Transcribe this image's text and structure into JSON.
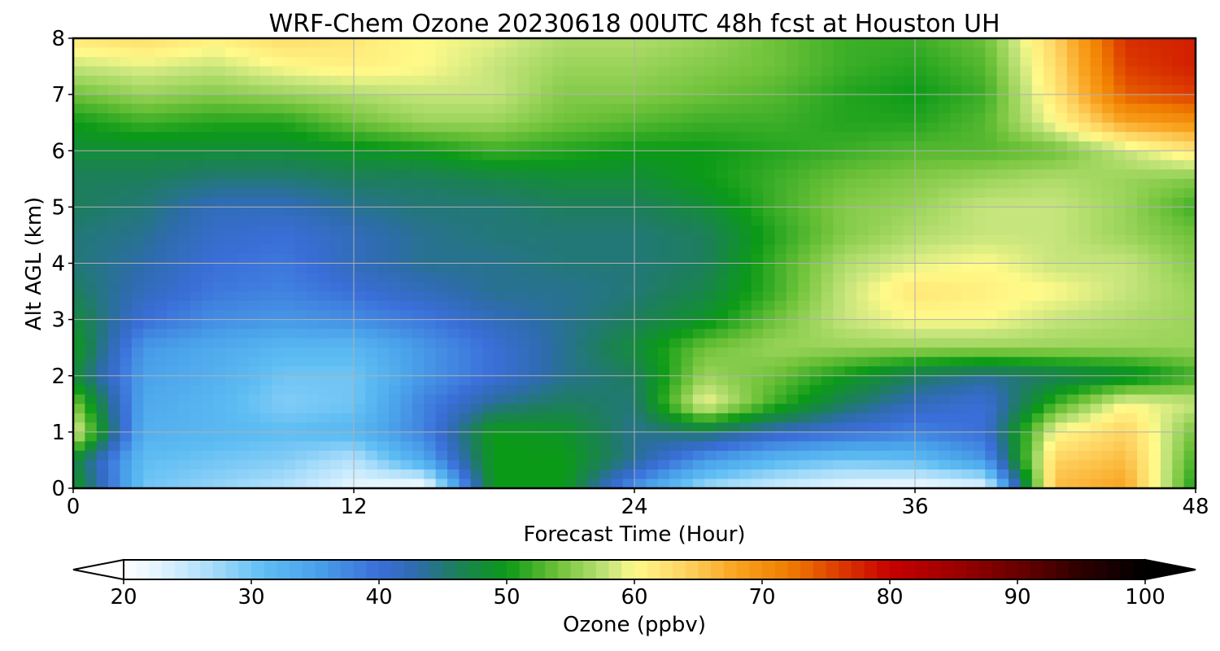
{
  "chart_data": {
    "type": "heatmap",
    "title": "WRF-Chem Ozone  20230618 00UTC 48h fcst at Houston UH",
    "xlabel": "Forecast Time (Hour)",
    "ylabel": "Alt AGL (km)",
    "xlim": [
      0,
      48
    ],
    "ylim": [
      0,
      8
    ],
    "x_ticks": [
      0,
      12,
      24,
      36,
      48
    ],
    "y_ticks": [
      0,
      1,
      2,
      3,
      4,
      5,
      6,
      7,
      8
    ],
    "grid": true,
    "x_hours": [
      0,
      3,
      6,
      9,
      12,
      15,
      18,
      21,
      24,
      27,
      30,
      33,
      36,
      39,
      42,
      45,
      48
    ],
    "y_km": [
      0,
      0.5,
      1,
      1.5,
      2,
      2.5,
      3,
      3.5,
      4,
      4.5,
      5,
      5.5,
      6,
      6.5,
      7,
      7.5,
      8
    ],
    "ozone_ppbv": [
      [
        50,
        30,
        28,
        26,
        22,
        20,
        50,
        50,
        36,
        27,
        24,
        22,
        21,
        22,
        66,
        68,
        50
      ],
      [
        48,
        31,
        30,
        29,
        26,
        34,
        50,
        50,
        44,
        36,
        32,
        30,
        31,
        36,
        64,
        66,
        52
      ],
      [
        60,
        33,
        32,
        31,
        32,
        38,
        50,
        49,
        44,
        46,
        42,
        40,
        38,
        40,
        60,
        64,
        54
      ],
      [
        55,
        34,
        32,
        29,
        30,
        38,
        44,
        46,
        45,
        60,
        52,
        46,
        42,
        40,
        52,
        60,
        58
      ],
      [
        48,
        35,
        33,
        30,
        30,
        36,
        40,
        44,
        46,
        56,
        54,
        50,
        46,
        44,
        46,
        48,
        52
      ],
      [
        50,
        36,
        34,
        32,
        32,
        36,
        40,
        44,
        48,
        54,
        56,
        56,
        56,
        56,
        56,
        56,
        56
      ],
      [
        48,
        40,
        37,
        36,
        37,
        39,
        42,
        44,
        46,
        49,
        54,
        58,
        60,
        60,
        58,
        57,
        56
      ],
      [
        46,
        42,
        39,
        38,
        40,
        42,
        44,
        44,
        45,
        47,
        52,
        58,
        62,
        61,
        60,
        58,
        56
      ],
      [
        45,
        43,
        40,
        39,
        42,
        44,
        44,
        45,
        45,
        46,
        52,
        57,
        59,
        60,
        58,
        58,
        55
      ],
      [
        45,
        44,
        41,
        40,
        42,
        44,
        45,
        45,
        45,
        46,
        51,
        55,
        57,
        58,
        58,
        56,
        54
      ],
      [
        46,
        45,
        42,
        42,
        44,
        45,
        45,
        46,
        46,
        48,
        52,
        55,
        56,
        58,
        58,
        56,
        52
      ],
      [
        46,
        46,
        45,
        45,
        46,
        46,
        47,
        48,
        48,
        50,
        52,
        54,
        55,
        56,
        57,
        56,
        55
      ],
      [
        48,
        48,
        48,
        48,
        49,
        50,
        52,
        51,
        50,
        50,
        51,
        52,
        53,
        53,
        54,
        58,
        62
      ],
      [
        50,
        52,
        51,
        51,
        54,
        56,
        56,
        54,
        53,
        52,
        52,
        51,
        51,
        53,
        60,
        68,
        70
      ],
      [
        54,
        56,
        55,
        56,
        57,
        58,
        58,
        55,
        55,
        54,
        53,
        51,
        50,
        52,
        62,
        74,
        76
      ],
      [
        58,
        59,
        58,
        60,
        61,
        60,
        58,
        56,
        56,
        55,
        54,
        52,
        51,
        53,
        63,
        76,
        78
      ],
      [
        62,
        63,
        61,
        63,
        62,
        60,
        59,
        57,
        57,
        56,
        54,
        52,
        52,
        54,
        64,
        77,
        78
      ]
    ]
  },
  "colorbar": {
    "label": "Ozone  (ppbv)",
    "min": 20,
    "max": 100,
    "ticks": [
      "20",
      "30",
      "40",
      "50",
      "60",
      "70",
      "80",
      "90",
      "100"
    ],
    "extend": "both",
    "stops": [
      {
        "v": 20,
        "c": "#ffffff"
      },
      {
        "v": 23,
        "c": "#dff3ff"
      },
      {
        "v": 27,
        "c": "#a6dcfa"
      },
      {
        "v": 31,
        "c": "#5ebdf3"
      },
      {
        "v": 35,
        "c": "#4aa2ea"
      },
      {
        "v": 40,
        "c": "#3a6ed8"
      },
      {
        "v": 43,
        "c": "#2d6cab"
      },
      {
        "v": 46,
        "c": "#1d7e5c"
      },
      {
        "v": 50,
        "c": "#0b9a17"
      },
      {
        "v": 54,
        "c": "#6ec239"
      },
      {
        "v": 58,
        "c": "#c6e57c"
      },
      {
        "v": 60,
        "c": "#fffa8a"
      },
      {
        "v": 64,
        "c": "#fed362"
      },
      {
        "v": 68,
        "c": "#f9a31f"
      },
      {
        "v": 72,
        "c": "#f07e00"
      },
      {
        "v": 76,
        "c": "#dd3d00"
      },
      {
        "v": 80,
        "c": "#c60000"
      },
      {
        "v": 85,
        "c": "#9e0000"
      },
      {
        "v": 90,
        "c": "#6a0000"
      },
      {
        "v": 95,
        "c": "#2d0000"
      },
      {
        "v": 100,
        "c": "#000000"
      }
    ]
  }
}
